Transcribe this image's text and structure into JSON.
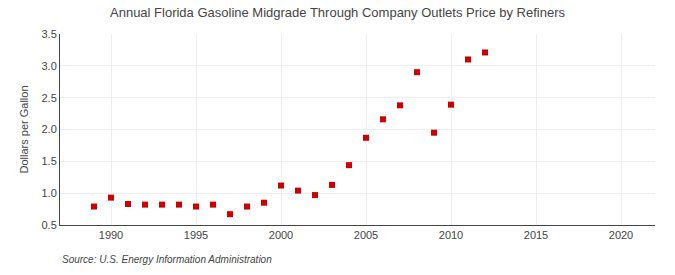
{
  "chart_data": {
    "type": "scatter",
    "title": "Annual Florida Gasoline Midgrade Through Company Outlets Price by Refiners",
    "ylabel": "Dollars per Gallon",
    "annotations": [
      "Source: U.S. Energy Information Administration"
    ],
    "x": [
      1989,
      1990,
      1991,
      1992,
      1993,
      1994,
      1995,
      1996,
      1997,
      1998,
      1999,
      2000,
      2001,
      2002,
      2003,
      2004,
      2005,
      2006,
      2007,
      2008,
      2009,
      2010,
      2011,
      2012
    ],
    "values": [
      0.79,
      0.93,
      0.83,
      0.82,
      0.82,
      0.82,
      0.79,
      0.82,
      0.67,
      0.79,
      0.85,
      1.12,
      1.04,
      0.97,
      1.13,
      1.44,
      1.87,
      2.16,
      2.38,
      2.9,
      1.95,
      2.39,
      3.1,
      3.21
    ],
    "color": "#cc0000",
    "marker": "square",
    "xlim": [
      1987,
      2022
    ],
    "ylim": [
      0.5,
      3.5
    ],
    "xticks": [
      1990,
      1995,
      2000,
      2005,
      2010,
      2015,
      2020
    ],
    "yticks": [
      0.5,
      {
        "value": 1.0,
        "label": "1.0"
      },
      1.5,
      {
        "value": 2.0,
        "label": "2.0"
      },
      2.5,
      {
        "value": 3.0,
        "label": "3.0"
      },
      3.5
    ],
    "grid": true
  }
}
